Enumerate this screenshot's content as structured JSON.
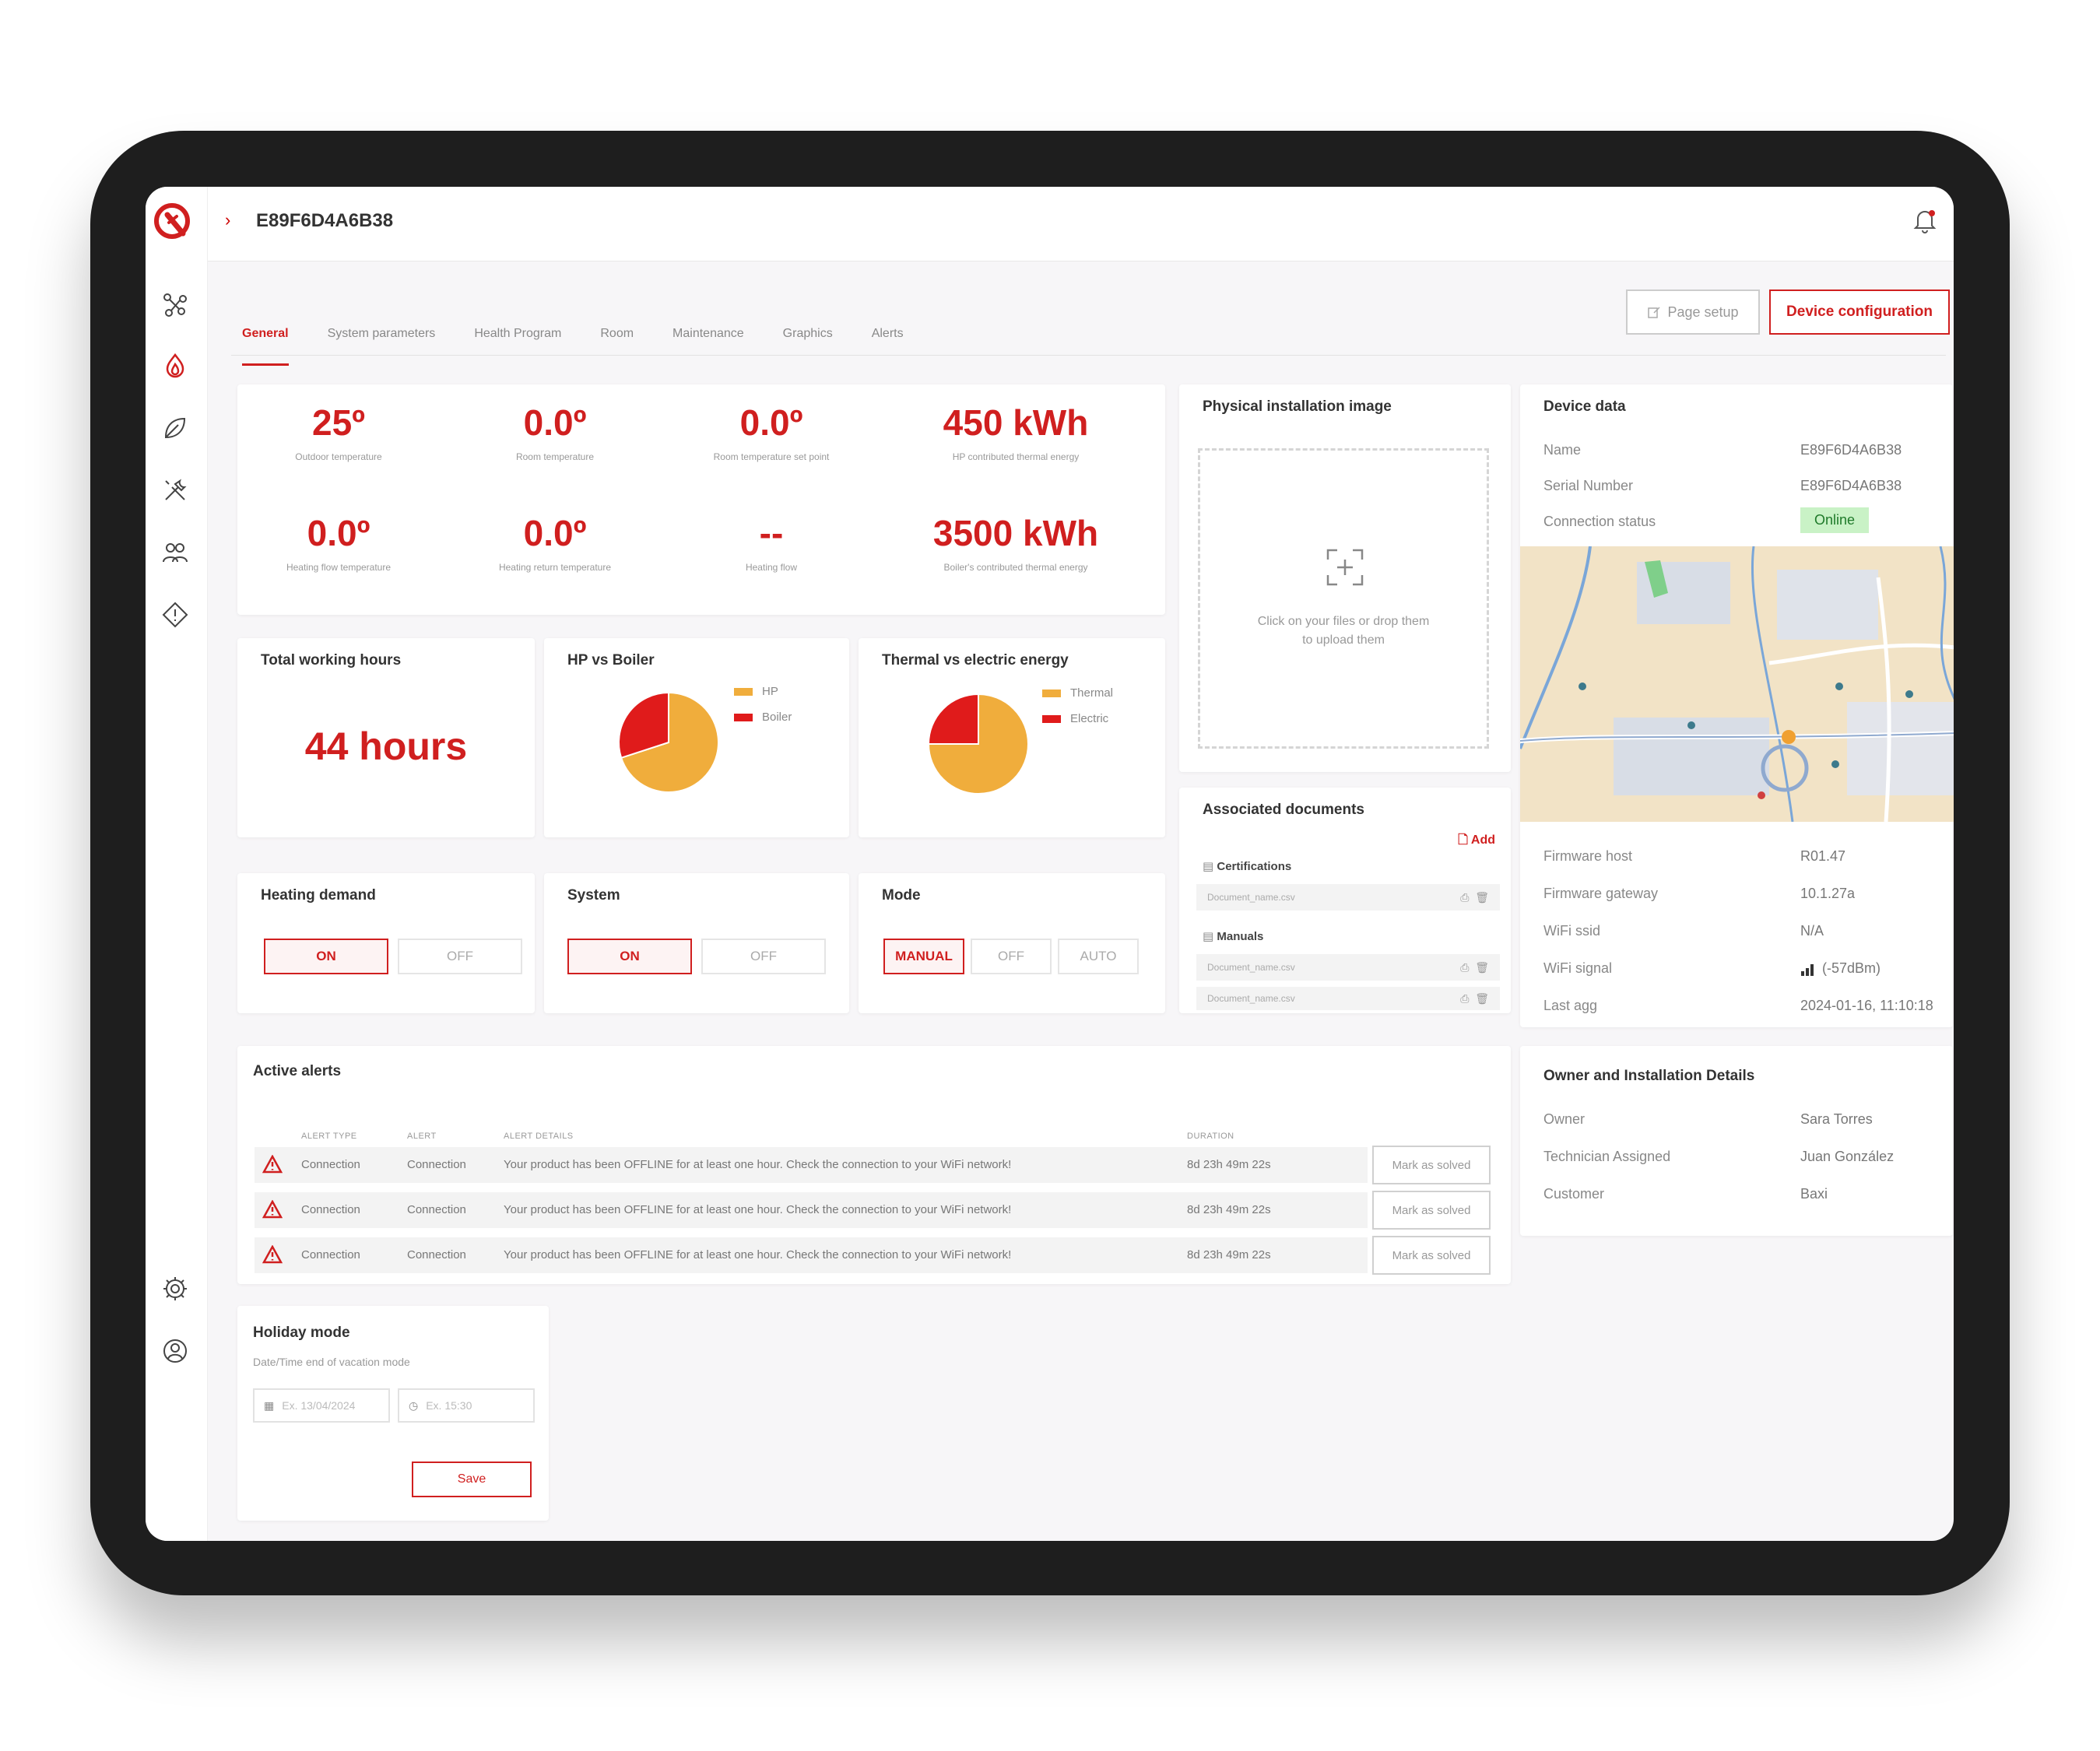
{
  "header": {
    "device_id": "E89F6D4A6B38",
    "breadcrumb_chevron": "›"
  },
  "tabs": [
    {
      "label": "General",
      "active": true
    },
    {
      "label": "System parameters",
      "active": false
    },
    {
      "label": "Health Program",
      "active": false
    },
    {
      "label": "Room",
      "active": false
    },
    {
      "label": "Maintenance",
      "active": false
    },
    {
      "label": "Graphics",
      "active": false
    },
    {
      "label": "Alerts",
      "active": false
    }
  ],
  "actions": {
    "page_setup": "Page setup",
    "device_configuration": "Device configuration"
  },
  "metrics": [
    {
      "value": "25º",
      "label": "Outdoor temperature"
    },
    {
      "value": "0.0º",
      "label": "Room temperature"
    },
    {
      "value": "0.0º",
      "label": "Room temperature set point"
    },
    {
      "value": "450 kWh",
      "label": "HP contributed thermal energy"
    },
    {
      "value": "0.0º",
      "label": "Heating flow temperature"
    },
    {
      "value": "0.0º",
      "label": "Heating return temperature"
    },
    {
      "value": "--",
      "label": "Heating flow"
    },
    {
      "value": "3500 kWh",
      "label": "Boiler's contributed thermal energy"
    }
  ],
  "working_hours": {
    "title": "Total working hours",
    "value": "44 hours"
  },
  "chart_data": [
    {
      "type": "pie",
      "title": "HP vs Boiler",
      "categories": [
        "HP",
        "Boiler"
      ],
      "values": [
        70,
        30
      ],
      "colors": [
        "#f0ad3c",
        "#e01b1b"
      ]
    },
    {
      "type": "pie",
      "title": "Thermal vs electric energy",
      "categories": [
        "Thermal",
        "Electric"
      ],
      "values": [
        75,
        25
      ],
      "colors": [
        "#f0ad3c",
        "#e01b1b"
      ]
    }
  ],
  "controls": {
    "heating_demand": {
      "title": "Heating demand",
      "options": [
        "ON",
        "OFF"
      ],
      "selected": "ON"
    },
    "system": {
      "title": "System",
      "options": [
        "ON",
        "OFF"
      ],
      "selected": "ON"
    },
    "mode": {
      "title": "Mode",
      "options": [
        "MANUAL",
        "OFF",
        "AUTO"
      ],
      "selected": "MANUAL"
    }
  },
  "installation_image": {
    "title": "Physical installation image",
    "upload_text_1": "Click on your files or drop them",
    "upload_text_2": "to upload them"
  },
  "documents": {
    "title": "Associated documents",
    "add_label": "Add",
    "certifications_label": "Certifications",
    "certifications": [
      "Document_name.csv"
    ],
    "manuals_label": "Manuals",
    "manuals": [
      "Document_name.csv",
      "Document_name.csv"
    ]
  },
  "device_data": {
    "title": "Device data",
    "name_label": "Name",
    "name_value": "E89F6D4A6B38",
    "serial_label": "Serial Number",
    "serial_value": "E89F6D4A6B38",
    "connection_label": "Connection status",
    "connection_value": "Online",
    "firmware_host_label": "Firmware host",
    "firmware_host_value": "R01.47",
    "firmware_gateway_label": "Firmware gateway",
    "firmware_gateway_value": "10.1.27a",
    "wifi_ssid_label": "WiFi ssid",
    "wifi_ssid_value": "N/A",
    "wifi_signal_label": "WiFi signal",
    "wifi_signal_value": "(-57dBm)",
    "last_agg_label": "Last agg",
    "last_agg_value": "2024-01-16, 11:10:18"
  },
  "owner_details": {
    "title": "Owner and Installation Details",
    "owner_label": "Owner",
    "owner_value": "Sara Torres",
    "technician_label": "Technician Assigned",
    "technician_value": "Juan González",
    "customer_label": "Customer",
    "customer_value": "Baxi"
  },
  "alerts": {
    "title": "Active alerts",
    "columns": {
      "type": "ALERT TYPE",
      "alert": "ALERT",
      "details": "ALERT DETAILS",
      "duration": "DURATION"
    },
    "rows": [
      {
        "type": "Connection",
        "alert": "Connection",
        "details": "Your product has been OFFLINE for at least one hour. Check the connection to your WiFi network!",
        "duration": "8d 23h 49m 22s",
        "action": "Mark as solved"
      },
      {
        "type": "Connection",
        "alert": "Connection",
        "details": "Your product has been OFFLINE for at least one hour. Check the connection to your WiFi network!",
        "duration": "8d 23h 49m 22s",
        "action": "Mark as solved"
      },
      {
        "type": "Connection",
        "alert": "Connection",
        "details": "Your product has been OFFLINE for at least one hour. Check the connection to your WiFi network!",
        "duration": "8d 23h 49m 22s",
        "action": "Mark as solved"
      }
    ]
  },
  "holiday": {
    "title": "Holiday mode",
    "subtitle": "Date/Time end of vacation mode",
    "date_placeholder": "Ex. 13/04/2024",
    "time_placeholder": "Ex. 15:30",
    "save_label": "Save"
  },
  "colors": {
    "accent": "#d01f1f",
    "pie_primary": "#f0ad3c",
    "pie_secondary": "#e01b1b",
    "online_bg": "#c9f2c6"
  }
}
